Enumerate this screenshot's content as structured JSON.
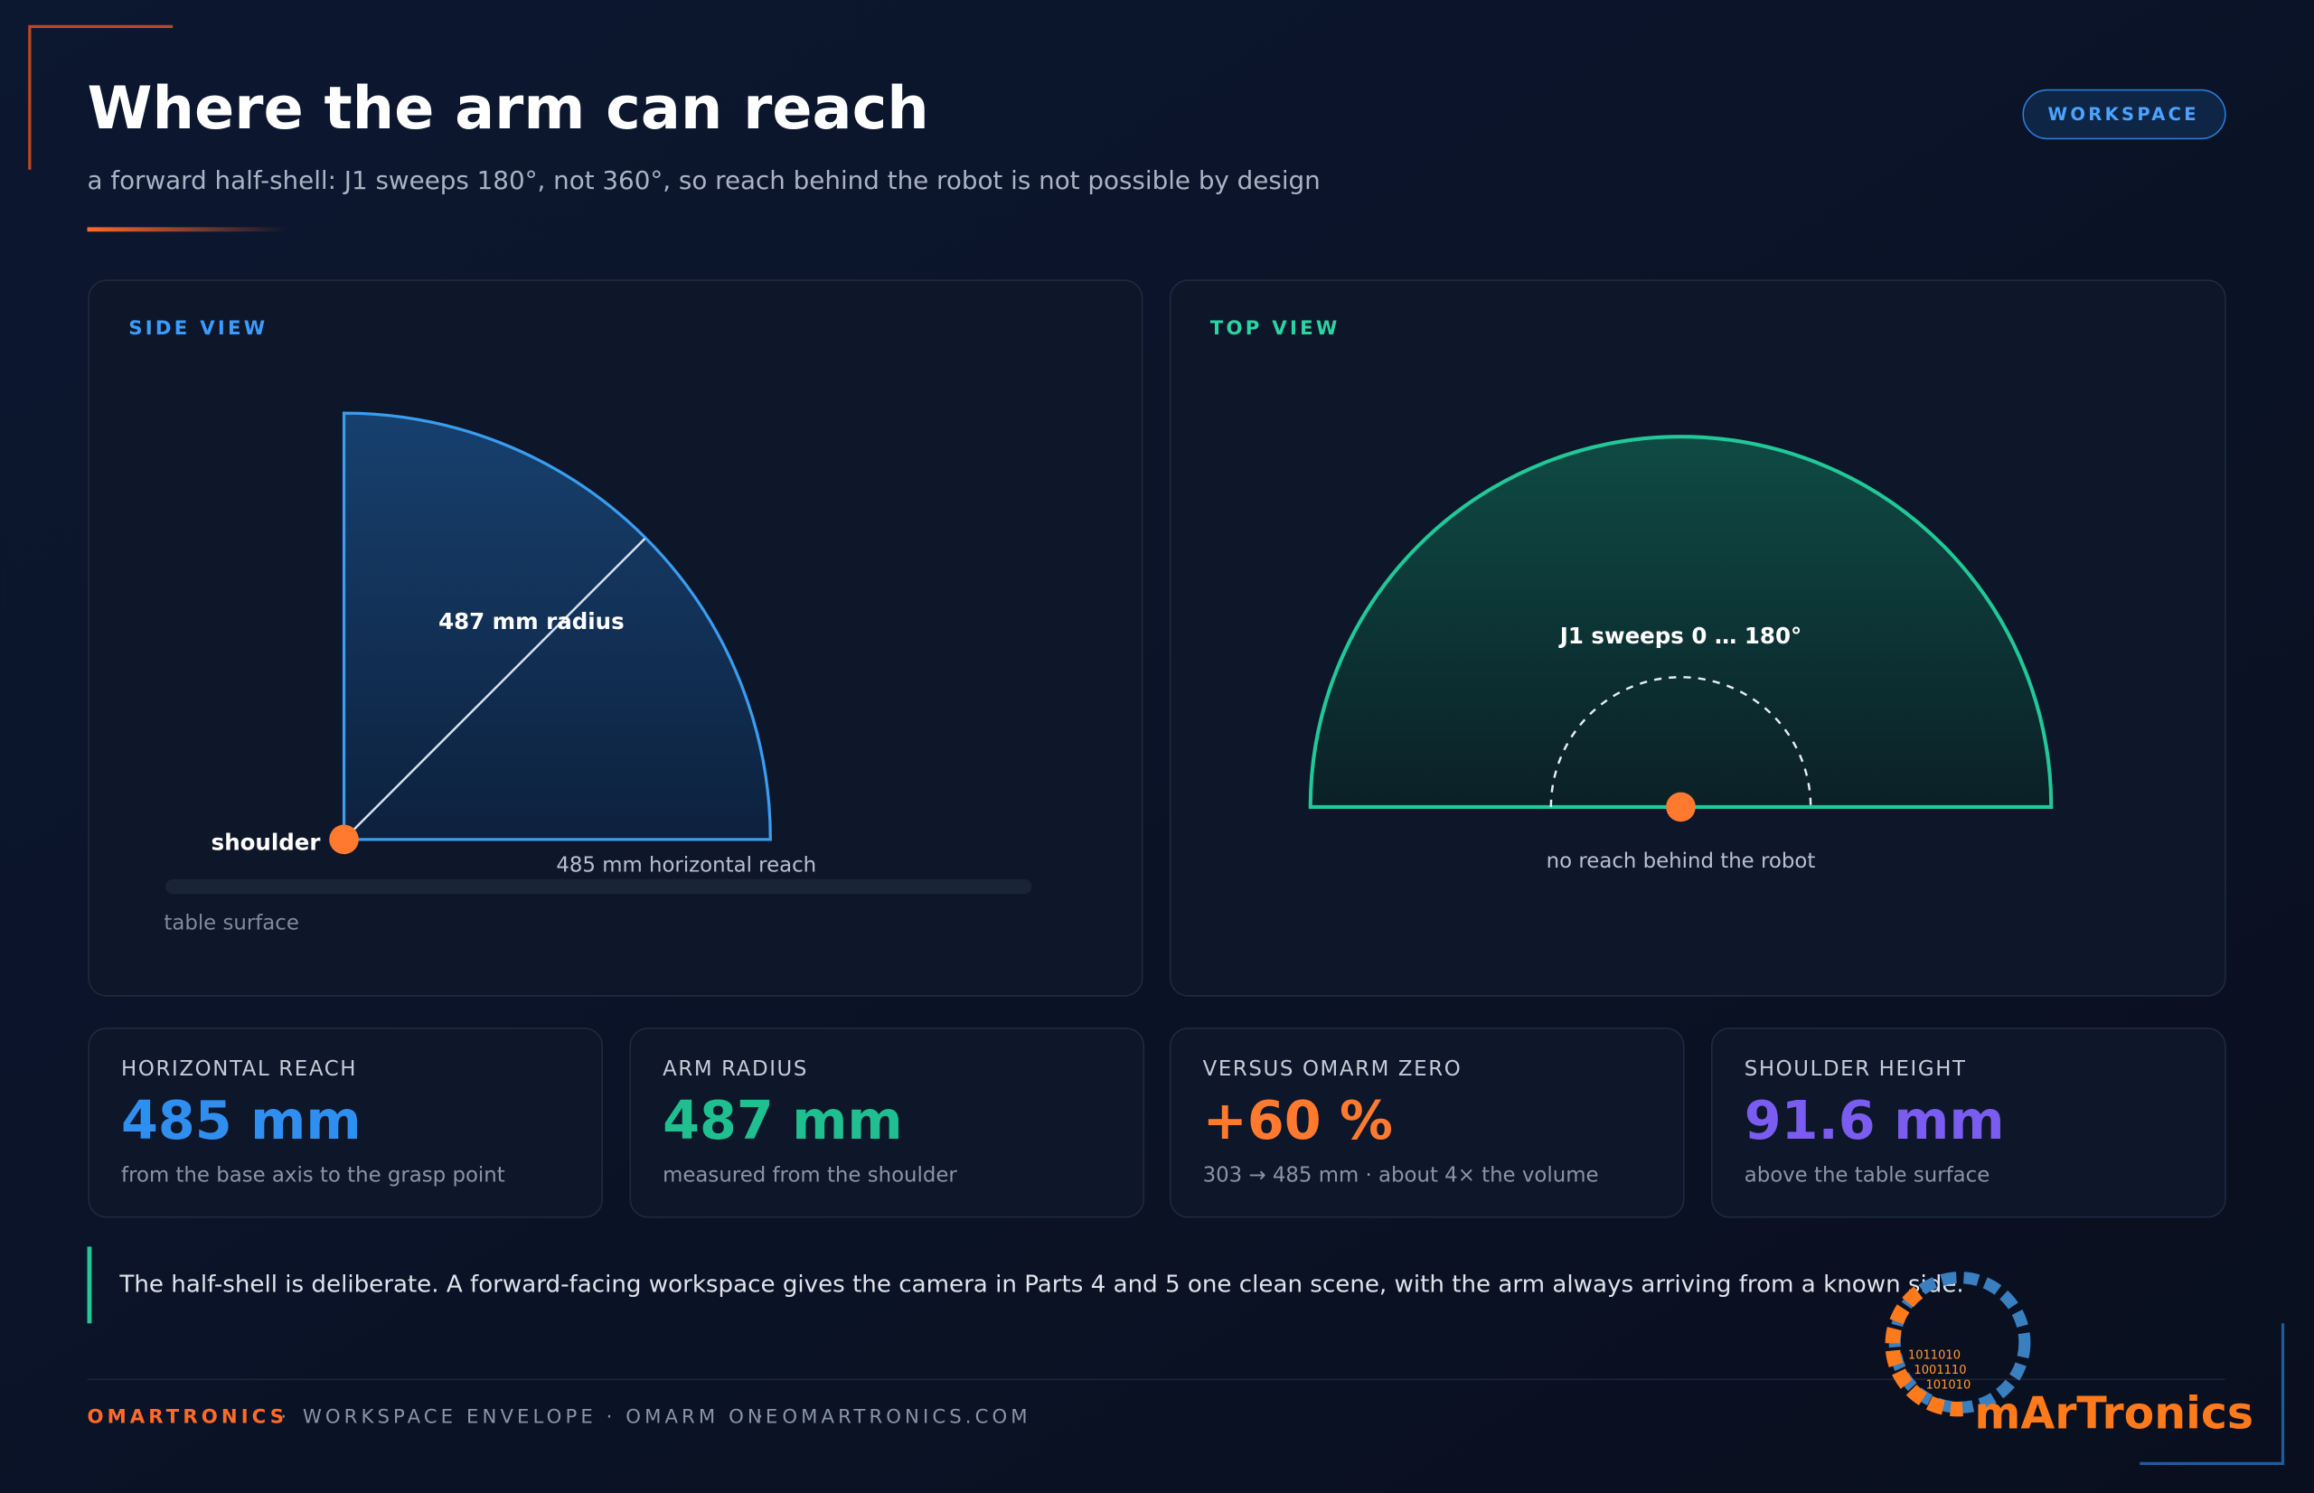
{
  "header": {
    "title": "Where the arm can reach",
    "subtitle": "a forward half-shell: J1 sweeps 180°, not 360°, so reach behind the robot is not possible by design",
    "badge": "WORKSPACE"
  },
  "side_view": {
    "label": "SIDE VIEW",
    "radius_label": "487 mm radius",
    "shoulder_label": "shoulder",
    "reach_label": "485 mm horizontal reach",
    "surface_label": "table surface"
  },
  "top_view": {
    "label": "TOP VIEW",
    "sweep_label": "J1 sweeps 0 … 180°",
    "behind_label": "no reach behind the robot"
  },
  "stats": [
    {
      "label": "HORIZONTAL REACH",
      "value": "485 mm",
      "note": "from the base axis to the grasp point"
    },
    {
      "label": "ARM RADIUS",
      "value": "487 mm",
      "note": "measured from the shoulder"
    },
    {
      "label": "VERSUS OMARM ZERO",
      "value": "+60 %",
      "note": "303 → 485 mm · about 4× the volume"
    },
    {
      "label": "SHOULDER HEIGHT",
      "value": "91.6 mm",
      "note": "above the table surface"
    }
  ],
  "note": "The half-shell is deliberate. A forward-facing workspace gives the camera in Parts 4 and 5 one clean scene, with the arm always arriving from a known side.",
  "footer": {
    "brand": "OMARTRONICS",
    "separator": "·",
    "middle": "WORKSPACE ENVELOPE · OMARM ONE",
    "site": "OMARTRONICS.COM"
  },
  "logo": {
    "name": "mArTronics",
    "binary": [
      "1011010",
      "1001110",
      "101010"
    ]
  }
}
